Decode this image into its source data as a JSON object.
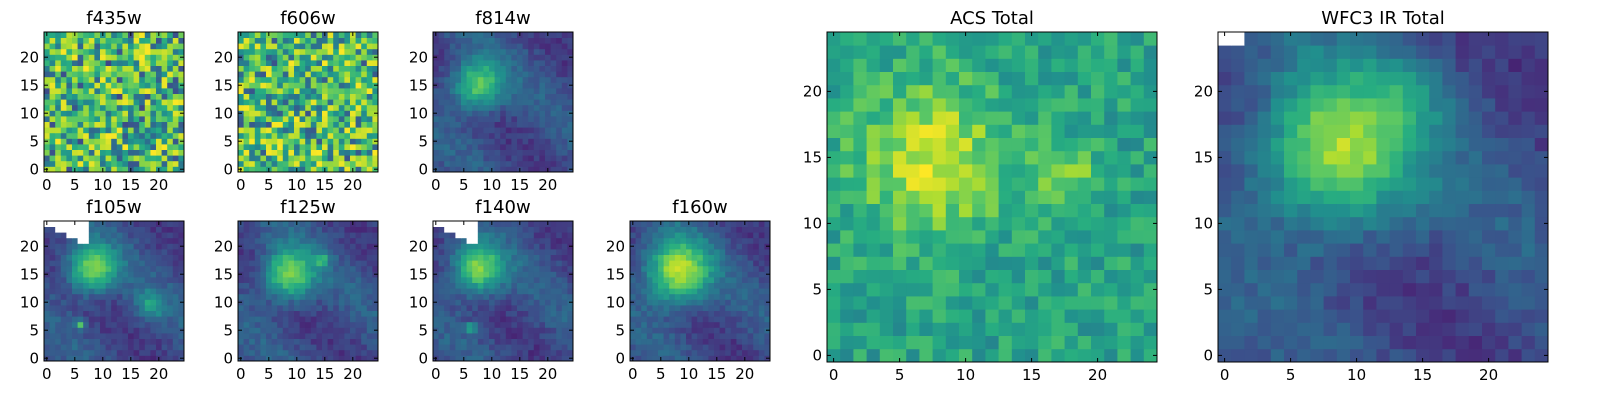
{
  "figure": {
    "colormap": [
      "#440154",
      "#472c7a",
      "#3b518b",
      "#2c718e",
      "#21908d",
      "#27ad81",
      "#5cc863",
      "#aadc32",
      "#fde725"
    ],
    "missing_color": "#ffffff",
    "axis_color": "#000000"
  },
  "chart_data": [
    {
      "type": "heatmap",
      "title": "f435w",
      "x_ticks": [
        0,
        5,
        10,
        15,
        20
      ],
      "y_ticks": [
        0,
        5,
        10,
        15,
        20
      ],
      "xlim": [
        -0.5,
        24.5
      ],
      "ylim": [
        -0.5,
        24.5
      ],
      "grid": false,
      "pattern": "noise",
      "sources": [],
      "missing_corner": null,
      "value_range": [
        0.2,
        1.0
      ],
      "description": "pixel noise map, yellow-green dominated"
    },
    {
      "type": "heatmap",
      "title": "f606w",
      "x_ticks": [
        0,
        5,
        10,
        15,
        20
      ],
      "y_ticks": [
        0,
        5,
        10,
        15,
        20
      ],
      "xlim": [
        -0.5,
        24.5
      ],
      "ylim": [
        -0.5,
        24.5
      ],
      "grid": false,
      "pattern": "noise",
      "sources": [],
      "missing_corner": null,
      "value_range": [
        0.25,
        1.0
      ]
    },
    {
      "type": "heatmap",
      "title": "f814w",
      "x_ticks": [
        0,
        5,
        10,
        15,
        20
      ],
      "y_ticks": [
        0,
        5,
        10,
        15,
        20
      ],
      "xlim": [
        -0.5,
        24.5
      ],
      "ylim": [
        -0.5,
        24.5
      ],
      "grid": false,
      "pattern": "source",
      "sources": [
        {
          "x": 7.5,
          "y": 15,
          "amp": 0.55,
          "sigma": 3.2
        }
      ],
      "missing_corner": null,
      "value_range": [
        0.15,
        1.0
      ]
    },
    {
      "type": "heatmap",
      "title": "f105w",
      "x_ticks": [
        0,
        5,
        10,
        15,
        20
      ],
      "y_ticks": [
        0,
        5,
        10,
        15,
        20
      ],
      "xlim": [
        -0.5,
        24.5
      ],
      "ylim": [
        -0.5,
        24.5
      ],
      "grid": false,
      "pattern": "source",
      "sources": [
        {
          "x": 8,
          "y": 16,
          "amp": 0.6,
          "sigma": 3.0
        },
        {
          "x": 18.5,
          "y": 9.5,
          "amp": 0.3,
          "sigma": 1.8
        },
        {
          "x": 6,
          "y": 6,
          "amp": 0.45,
          "sigma": 0.6
        }
      ],
      "missing_corner": {
        "x_max": 7,
        "y_min": 21,
        "slope": 0.45
      },
      "value_range": [
        0.1,
        1.0
      ]
    },
    {
      "type": "heatmap",
      "title": "f125w",
      "x_ticks": [
        0,
        5,
        10,
        15,
        20
      ],
      "y_ticks": [
        0,
        5,
        10,
        15,
        20
      ],
      "xlim": [
        -0.5,
        24.5
      ],
      "ylim": [
        -0.5,
        24.5
      ],
      "grid": false,
      "pattern": "source",
      "sources": [
        {
          "x": 8.5,
          "y": 15,
          "amp": 0.6,
          "sigma": 3.2
        },
        {
          "x": 14.5,
          "y": 17.5,
          "amp": 0.35,
          "sigma": 0.8
        }
      ],
      "missing_corner": null,
      "value_range": [
        0.1,
        1.0
      ]
    },
    {
      "type": "heatmap",
      "title": "f140w",
      "x_ticks": [
        0,
        5,
        10,
        15,
        20
      ],
      "y_ticks": [
        0,
        5,
        10,
        15,
        20
      ],
      "xlim": [
        -0.5,
        24.5
      ],
      "ylim": [
        -0.5,
        24.5
      ],
      "grid": false,
      "pattern": "source",
      "sources": [
        {
          "x": 7.5,
          "y": 16,
          "amp": 0.6,
          "sigma": 3.2
        },
        {
          "x": 6.5,
          "y": 5.5,
          "amp": 0.45,
          "sigma": 0.6
        }
      ],
      "missing_corner": {
        "x_max": 7,
        "y_min": 21,
        "slope": 0.45
      },
      "value_range": [
        0.05,
        1.0
      ]
    },
    {
      "type": "heatmap",
      "title": "f160w",
      "x_ticks": [
        0,
        5,
        10,
        15,
        20
      ],
      "y_ticks": [
        0,
        5,
        10,
        15,
        20
      ],
      "xlim": [
        -0.5,
        24.5
      ],
      "ylim": [
        -0.5,
        24.5
      ],
      "grid": false,
      "pattern": "source",
      "sources": [
        {
          "x": 8,
          "y": 15.5,
          "amp": 0.7,
          "sigma": 4.0
        }
      ],
      "missing_corner": null,
      "value_range": [
        0.05,
        1.0
      ]
    },
    {
      "type": "heatmap",
      "title": "ACS Total",
      "x_ticks": [
        0,
        5,
        10,
        15,
        20
      ],
      "y_ticks": [
        0,
        5,
        10,
        15,
        20
      ],
      "xlim": [
        -0.5,
        24.5
      ],
      "ylim": [
        -0.5,
        24.5
      ],
      "grid": false,
      "pattern": "source",
      "sources": [
        {
          "x": 7.5,
          "y": 15,
          "amp": 0.35,
          "sigma": 4.0
        },
        {
          "x": 17.5,
          "y": 13.5,
          "amp": 0.25,
          "sigma": 1.6
        }
      ],
      "missing_corner": null,
      "value_range": [
        0.3,
        1.0
      ]
    },
    {
      "type": "heatmap",
      "title": "WFC3 IR Total",
      "x_ticks": [
        0,
        5,
        10,
        15,
        20
      ],
      "y_ticks": [
        0,
        5,
        10,
        15,
        20
      ],
      "xlim": [
        -0.5,
        24.5
      ],
      "ylim": [
        -0.5,
        24.5
      ],
      "grid": false,
      "pattern": "source",
      "sources": [
        {
          "x": 8.5,
          "y": 15.5,
          "amp": 0.65,
          "sigma": 4.2
        },
        {
          "x": 14,
          "y": 20,
          "amp": 0.15,
          "sigma": 2.0
        }
      ],
      "missing_corner": {
        "x_max": 1,
        "y_min": 24,
        "slope": 0
      },
      "value_range": [
        0.05,
        1.0
      ]
    }
  ]
}
